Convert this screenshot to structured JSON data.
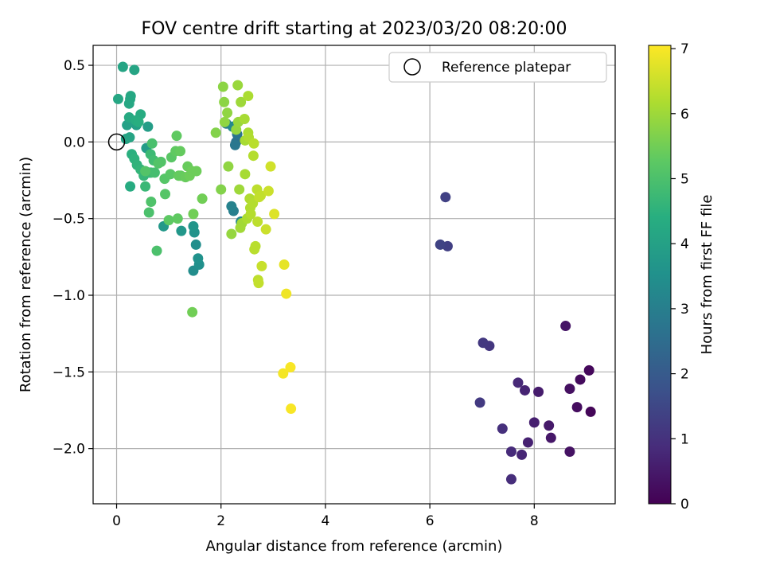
{
  "chart_data": {
    "type": "scatter",
    "title": "FOV centre drift starting at 2023/03/20 08:20:00",
    "xlabel": "Angular distance from reference (arcmin)",
    "ylabel": "Rotation from reference (arcmin)",
    "xlim": [
      -0.45,
      9.55
    ],
    "ylim": [
      -2.36,
      0.63
    ],
    "xticks": [
      {
        "value": 0,
        "label": "0"
      },
      {
        "value": 2,
        "label": "2"
      },
      {
        "value": 4,
        "label": "4"
      },
      {
        "value": 6,
        "label": "6"
      },
      {
        "value": 8,
        "label": "8"
      }
    ],
    "yticks": [
      {
        "value": 0.5,
        "label": "0.5"
      },
      {
        "value": 0.0,
        "label": "0.0"
      },
      {
        "value": -0.5,
        "label": "−0.5"
      },
      {
        "value": -1.0,
        "label": "−1.0"
      },
      {
        "value": -1.5,
        "label": "−1.5"
      },
      {
        "value": -2.0,
        "label": "−2.0"
      }
    ],
    "grid": true,
    "legend": {
      "position": "top-right",
      "entries": [
        {
          "label": "Reference platepar",
          "marker": "open-circle"
        }
      ]
    },
    "reference_point": {
      "x": 0,
      "y": 0
    },
    "colorbar": {
      "label": "Hours from first FF file",
      "colormap": "viridis",
      "range": [
        0,
        7.05
      ],
      "ticks": [
        {
          "value": 0,
          "label": "0"
        },
        {
          "value": 1,
          "label": "1"
        },
        {
          "value": 2,
          "label": "2"
        },
        {
          "value": 3,
          "label": "3"
        },
        {
          "value": 4,
          "label": "4"
        },
        {
          "value": 5,
          "label": "5"
        },
        {
          "value": 6,
          "label": "6"
        },
        {
          "value": 7,
          "label": "7"
        }
      ]
    },
    "points": [
      {
        "x": 9.08,
        "y": -1.76,
        "c": 0.1
      },
      {
        "x": 9.05,
        "y": -1.49,
        "c": 0.15
      },
      {
        "x": 8.88,
        "y": -1.55,
        "c": 0.2
      },
      {
        "x": 8.82,
        "y": -1.73,
        "c": 0.25
      },
      {
        "x": 8.68,
        "y": -1.61,
        "c": 0.3
      },
      {
        "x": 8.68,
        "y": -2.02,
        "c": 0.35
      },
      {
        "x": 8.6,
        "y": -1.2,
        "c": 0.4
      },
      {
        "x": 8.32,
        "y": -1.93,
        "c": 0.45
      },
      {
        "x": 8.28,
        "y": -1.85,
        "c": 0.5
      },
      {
        "x": 8.08,
        "y": -1.63,
        "c": 0.55
      },
      {
        "x": 8.0,
        "y": -1.83,
        "c": 0.6
      },
      {
        "x": 7.88,
        "y": -1.96,
        "c": 0.65
      },
      {
        "x": 7.82,
        "y": -1.62,
        "c": 0.7
      },
      {
        "x": 7.76,
        "y": -2.04,
        "c": 0.75
      },
      {
        "x": 7.69,
        "y": -1.57,
        "c": 0.8
      },
      {
        "x": 7.56,
        "y": -2.02,
        "c": 0.85
      },
      {
        "x": 7.56,
        "y": -2.2,
        "c": 0.9
      },
      {
        "x": 7.39,
        "y": -1.87,
        "c": 0.95
      },
      {
        "x": 7.14,
        "y": -1.33,
        "c": 1.1
      },
      {
        "x": 7.02,
        "y": -1.31,
        "c": 1.15
      },
      {
        "x": 6.96,
        "y": -1.7,
        "c": 1.2
      },
      {
        "x": 6.34,
        "y": -0.68,
        "c": 1.3
      },
      {
        "x": 6.3,
        "y": -0.36,
        "c": 1.35
      },
      {
        "x": 6.2,
        "y": -0.67,
        "c": 1.4
      },
      {
        "x": 2.29,
        "y": 0.0,
        "c": 2.6
      },
      {
        "x": 2.31,
        "y": 0.05,
        "c": 2.7
      },
      {
        "x": 2.27,
        "y": -0.02,
        "c": 2.8
      },
      {
        "x": 2.1,
        "y": 0.12,
        "c": 2.9
      },
      {
        "x": 2.24,
        "y": -0.45,
        "c": 3.0
      },
      {
        "x": 2.2,
        "y": -0.42,
        "c": 3.1
      },
      {
        "x": 2.38,
        "y": -0.52,
        "c": 3.2
      },
      {
        "x": 2.22,
        "y": 0.1,
        "c": 3.3
      },
      {
        "x": 1.47,
        "y": -0.84,
        "c": 3.4
      },
      {
        "x": 1.52,
        "y": -0.67,
        "c": 3.45
      },
      {
        "x": 1.58,
        "y": -0.8,
        "c": 3.5
      },
      {
        "x": 1.56,
        "y": -0.76,
        "c": 3.55
      },
      {
        "x": 1.49,
        "y": -0.59,
        "c": 3.6
      },
      {
        "x": 1.47,
        "y": -0.55,
        "c": 3.65
      },
      {
        "x": 1.24,
        "y": -0.58,
        "c": 3.7
      },
      {
        "x": 0.9,
        "y": -0.55,
        "c": 3.75
      },
      {
        "x": 0.63,
        "y": -0.2,
        "c": 3.8
      },
      {
        "x": 0.57,
        "y": -0.04,
        "c": 3.85
      },
      {
        "x": 0.6,
        "y": 0.1,
        "c": 3.9
      },
      {
        "x": 0.38,
        "y": 0.11,
        "c": 3.95
      },
      {
        "x": 0.2,
        "y": 0.11,
        "c": 4.0
      },
      {
        "x": 0.18,
        "y": 0.02,
        "c": 4.05
      },
      {
        "x": 0.25,
        "y": 0.03,
        "c": 4.1
      },
      {
        "x": 0.26,
        "y": 0.28,
        "c": 4.15
      },
      {
        "x": 0.27,
        "y": 0.3,
        "c": 4.2
      },
      {
        "x": 0.24,
        "y": 0.16,
        "c": 4.25
      },
      {
        "x": 0.46,
        "y": 0.18,
        "c": 4.3
      },
      {
        "x": 0.37,
        "y": 0.14,
        "c": 4.35
      },
      {
        "x": 0.42,
        "y": 0.13,
        "c": 4.4
      },
      {
        "x": 0.29,
        "y": -0.08,
        "c": 4.45
      },
      {
        "x": 0.34,
        "y": -0.11,
        "c": 4.5
      },
      {
        "x": 0.39,
        "y": -0.15,
        "c": 4.55
      },
      {
        "x": 0.46,
        "y": -0.18,
        "c": 4.6
      },
      {
        "x": 0.52,
        "y": -0.22,
        "c": 4.65
      },
      {
        "x": 0.55,
        "y": -0.29,
        "c": 4.7
      },
      {
        "x": 0.65,
        "y": -0.08,
        "c": 4.75
      },
      {
        "x": 0.66,
        "y": -0.2,
        "c": 4.8
      },
      {
        "x": 0.71,
        "y": -0.12,
        "c": 4.85
      },
      {
        "x": 0.73,
        "y": -0.2,
        "c": 4.9
      },
      {
        "x": 0.68,
        "y": -0.01,
        "c": 4.95
      },
      {
        "x": 0.62,
        "y": -0.46,
        "c": 5.0
      },
      {
        "x": 0.66,
        "y": -0.39,
        "c": 5.05
      },
      {
        "x": 0.55,
        "y": -0.19,
        "c": 5.1
      },
      {
        "x": 0.26,
        "y": -0.29,
        "c": 4.3
      },
      {
        "x": 0.12,
        "y": 0.49,
        "c": 4.1
      },
      {
        "x": 0.34,
        "y": 0.47,
        "c": 4.1
      },
      {
        "x": 0.03,
        "y": 0.28,
        "c": 4.15
      },
      {
        "x": 0.24,
        "y": 0.25,
        "c": 4.2
      },
      {
        "x": 0.77,
        "y": -0.71,
        "c": 5.0
      },
      {
        "x": 0.8,
        "y": -0.14,
        "c": 5.1
      },
      {
        "x": 0.85,
        "y": -0.13,
        "c": 5.1
      },
      {
        "x": 0.92,
        "y": -0.24,
        "c": 5.15
      },
      {
        "x": 0.93,
        "y": -0.34,
        "c": 5.15
      },
      {
        "x": 1.03,
        "y": -0.21,
        "c": 5.2
      },
      {
        "x": 1.05,
        "y": -0.1,
        "c": 5.2
      },
      {
        "x": 1.0,
        "y": -0.51,
        "c": 5.25
      },
      {
        "x": 1.15,
        "y": 0.04,
        "c": 5.3
      },
      {
        "x": 1.13,
        "y": -0.06,
        "c": 5.3
      },
      {
        "x": 1.17,
        "y": -0.5,
        "c": 5.3
      },
      {
        "x": 1.19,
        "y": -0.22,
        "c": 5.35
      },
      {
        "x": 1.23,
        "y": -0.22,
        "c": 5.35
      },
      {
        "x": 1.22,
        "y": -0.06,
        "c": 5.35
      },
      {
        "x": 1.32,
        "y": -0.23,
        "c": 5.4
      },
      {
        "x": 1.36,
        "y": -0.16,
        "c": 5.4
      },
      {
        "x": 1.4,
        "y": -0.22,
        "c": 5.45
      },
      {
        "x": 1.44,
        "y": -0.19,
        "c": 5.45
      },
      {
        "x": 1.53,
        "y": -0.19,
        "c": 5.45
      },
      {
        "x": 1.47,
        "y": -0.47,
        "c": 5.5
      },
      {
        "x": 1.45,
        "y": -1.11,
        "c": 5.5
      },
      {
        "x": 1.64,
        "y": -0.37,
        "c": 5.5
      },
      {
        "x": 1.9,
        "y": 0.06,
        "c": 5.7
      },
      {
        "x": 2.0,
        "y": -0.31,
        "c": 5.7
      },
      {
        "x": 2.04,
        "y": 0.36,
        "c": 5.8
      },
      {
        "x": 2.06,
        "y": 0.26,
        "c": 5.8
      },
      {
        "x": 2.07,
        "y": 0.13,
        "c": 5.85
      },
      {
        "x": 2.12,
        "y": 0.19,
        "c": 5.85
      },
      {
        "x": 2.14,
        "y": -0.16,
        "c": 5.85
      },
      {
        "x": 2.2,
        "y": -0.6,
        "c": 5.9
      },
      {
        "x": 2.29,
        "y": 0.08,
        "c": 5.9
      },
      {
        "x": 2.32,
        "y": 0.37,
        "c": 5.95
      },
      {
        "x": 2.33,
        "y": 0.13,
        "c": 5.95
      },
      {
        "x": 2.38,
        "y": 0.26,
        "c": 6.0
      },
      {
        "x": 2.35,
        "y": -0.31,
        "c": 6.0
      },
      {
        "x": 2.4,
        "y": -0.53,
        "c": 6.05
      },
      {
        "x": 2.37,
        "y": -0.56,
        "c": 6.05
      },
      {
        "x": 2.45,
        "y": 0.15,
        "c": 6.1
      },
      {
        "x": 2.46,
        "y": 0.01,
        "c": 6.1
      },
      {
        "x": 2.46,
        "y": -0.21,
        "c": 6.1
      },
      {
        "x": 2.5,
        "y": -0.5,
        "c": 6.15
      },
      {
        "x": 2.52,
        "y": 0.3,
        "c": 6.15
      },
      {
        "x": 2.52,
        "y": 0.06,
        "c": 6.15
      },
      {
        "x": 2.53,
        "y": 0.03,
        "c": 6.2
      },
      {
        "x": 2.55,
        "y": -0.37,
        "c": 6.2
      },
      {
        "x": 2.56,
        "y": -0.43,
        "c": 6.2
      },
      {
        "x": 2.57,
        "y": -0.47,
        "c": 6.25
      },
      {
        "x": 2.61,
        "y": -0.4,
        "c": 6.25
      },
      {
        "x": 2.62,
        "y": -0.09,
        "c": 6.25
      },
      {
        "x": 2.63,
        "y": -0.01,
        "c": 6.3
      },
      {
        "x": 2.64,
        "y": -0.7,
        "c": 6.3
      },
      {
        "x": 2.66,
        "y": -0.68,
        "c": 6.3
      },
      {
        "x": 2.69,
        "y": -0.31,
        "c": 6.35
      },
      {
        "x": 2.7,
        "y": -0.52,
        "c": 6.35
      },
      {
        "x": 2.71,
        "y": -0.9,
        "c": 6.35
      },
      {
        "x": 2.72,
        "y": -0.92,
        "c": 6.4
      },
      {
        "x": 2.73,
        "y": -0.36,
        "c": 6.4
      },
      {
        "x": 2.76,
        "y": -0.35,
        "c": 6.4
      },
      {
        "x": 2.78,
        "y": -0.81,
        "c": 6.45
      },
      {
        "x": 2.86,
        "y": -0.57,
        "c": 6.5
      },
      {
        "x": 2.91,
        "y": -0.32,
        "c": 6.5
      },
      {
        "x": 2.95,
        "y": -0.16,
        "c": 6.55
      },
      {
        "x": 3.02,
        "y": -0.47,
        "c": 6.7
      },
      {
        "x": 3.21,
        "y": -0.8,
        "c": 6.8
      },
      {
        "x": 3.25,
        "y": -0.99,
        "c": 6.9
      },
      {
        "x": 3.19,
        "y": -1.51,
        "c": 6.95
      },
      {
        "x": 3.33,
        "y": -1.47,
        "c": 7.0
      },
      {
        "x": 3.34,
        "y": -1.74,
        "c": 7.0
      }
    ]
  }
}
